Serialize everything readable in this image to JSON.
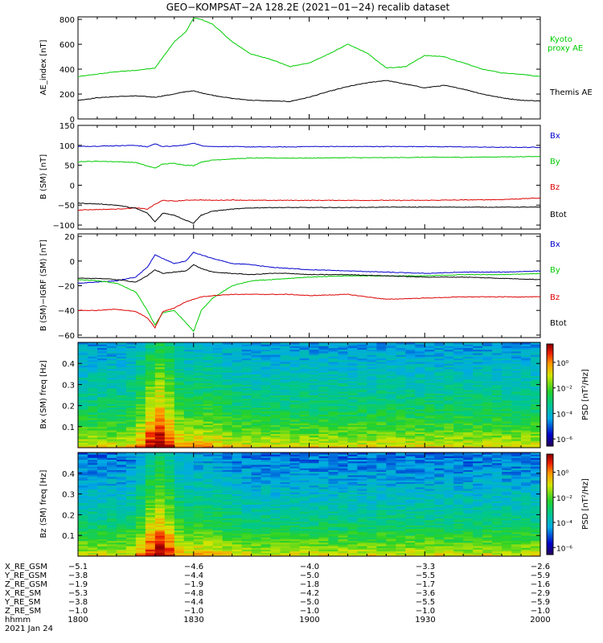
{
  "title": "GEO−KOMPSAT−2A 128.2E (2021−01−24) recalib dataset",
  "colors": {
    "black": "#000000",
    "blue": "#0000cc",
    "green": "#00cc00",
    "red": "#dd0000"
  },
  "chart_data": [
    {
      "type": "line",
      "ylabel": "AE_index [nT]",
      "ylim": [
        0,
        820
      ],
      "yticks": [
        "0",
        "200",
        "400",
        "600",
        "800"
      ],
      "x": [
        "1800",
        "1805",
        "1810",
        "1815",
        "1820",
        "1825",
        "1828",
        "1830",
        "1832",
        "1835",
        "1840",
        "1845",
        "1850",
        "1855",
        "1900",
        "1905",
        "1910",
        "1915",
        "1920",
        "1925",
        "1930",
        "1935",
        "1940",
        "1945",
        "1950",
        "1955",
        "2000"
      ],
      "series": [
        {
          "name": "Kyoto proxy AE",
          "color": "green",
          "values": [
            340,
            360,
            380,
            390,
            410,
            620,
            700,
            810,
            800,
            760,
            620,
            520,
            480,
            420,
            450,
            520,
            600,
            530,
            410,
            420,
            510,
            500,
            450,
            400,
            370,
            360,
            340
          ]
        },
        {
          "name": "Themis AE",
          "color": "black",
          "values": [
            150,
            170,
            180,
            185,
            175,
            200,
            220,
            225,
            210,
            190,
            165,
            150,
            145,
            140,
            175,
            220,
            260,
            290,
            310,
            280,
            250,
            270,
            240,
            200,
            170,
            150,
            145
          ]
        }
      ]
    },
    {
      "type": "line",
      "ylabel": "B (SM) [nT]",
      "ylim": [
        -110,
        150
      ],
      "yticks": [
        "−100",
        "−50",
        "0",
        "50",
        "100",
        "150"
      ],
      "x": [
        "1800",
        "1805",
        "1810",
        "1815",
        "1818",
        "1820",
        "1822",
        "1825",
        "1828",
        "1830",
        "1832",
        "1835",
        "1840",
        "1845",
        "1850",
        "1855",
        "1900",
        "1910",
        "1920",
        "1930",
        "1940",
        "1950",
        "2000"
      ],
      "series": [
        {
          "name": "Bx",
          "color": "blue",
          "values": [
            97,
            98,
            99,
            100,
            96,
            104,
            97,
            98,
            101,
            106,
            99,
            97,
            97,
            96,
            96,
            96,
            97,
            97,
            97,
            97,
            96,
            95,
            95
          ]
        },
        {
          "name": "By",
          "color": "green",
          "values": [
            59,
            60,
            59,
            57,
            48,
            43,
            53,
            55,
            50,
            49,
            58,
            63,
            66,
            68,
            68,
            68,
            68,
            69,
            69,
            70,
            70,
            71,
            72
          ]
        },
        {
          "name": "Bz",
          "color": "red",
          "values": [
            -62,
            -61,
            -60,
            -57,
            -60,
            -48,
            -38,
            -40,
            -38,
            -37,
            -37,
            -38,
            -37,
            -38,
            -38,
            -38,
            -38,
            -38,
            -38,
            -38,
            -37,
            -36,
            -32
          ]
        },
        {
          "name": "Btot",
          "color": "black",
          "values": [
            -45,
            -47,
            -50,
            -58,
            -70,
            -92,
            -70,
            -75,
            -88,
            -95,
            -75,
            -65,
            -60,
            -57,
            -56,
            -56,
            -56,
            -56,
            -55,
            -55,
            -55,
            -55,
            -55
          ]
        }
      ]
    },
    {
      "type": "line",
      "ylabel": "B (SM)−IGRF (SM) [nT]",
      "ylim": [
        -62,
        22
      ],
      "yticks": [
        "−60",
        "−40",
        "−20",
        "0",
        "20"
      ],
      "x": [
        "1800",
        "1805",
        "1810",
        "1815",
        "1818",
        "1820",
        "1822",
        "1825",
        "1828",
        "1830",
        "1832",
        "1835",
        "1840",
        "1845",
        "1850",
        "1855",
        "1900",
        "1910",
        "1920",
        "1930",
        "1940",
        "1950",
        "2000"
      ],
      "series": [
        {
          "name": "Bx",
          "color": "blue",
          "values": [
            -18,
            -17,
            -16,
            -13,
            -5,
            5,
            2,
            -2,
            0,
            7,
            5,
            2,
            -2,
            -3,
            -5,
            -6,
            -7,
            -8,
            -9,
            -10,
            -9,
            -9,
            -8
          ]
        },
        {
          "name": "By",
          "color": "green",
          "values": [
            -15,
            -16,
            -18,
            -25,
            -40,
            -52,
            -42,
            -40,
            -50,
            -57,
            -40,
            -30,
            -20,
            -16,
            -15,
            -14,
            -13,
            -12,
            -12,
            -12,
            -11,
            -11,
            -10
          ]
        },
        {
          "name": "Bz",
          "color": "red",
          "values": [
            -40,
            -40,
            -39,
            -41,
            -46,
            -54,
            -41,
            -38,
            -33,
            -31,
            -29,
            -28,
            -27,
            -27,
            -27,
            -27,
            -28,
            -27,
            -31,
            -30,
            -29,
            -29,
            -29
          ]
        },
        {
          "name": "Btot",
          "color": "black",
          "values": [
            -14,
            -14,
            -15,
            -17,
            -12,
            -7,
            -10,
            -9,
            -8,
            -3,
            -6,
            -9,
            -10,
            -11,
            -10,
            -10,
            -11,
            -11,
            -12,
            -13,
            -13,
            -14,
            -15
          ]
        }
      ]
    },
    {
      "type": "heatmap",
      "ylabel": "Bx (SM) freq [Hz]",
      "ylim": [
        0,
        0.5
      ],
      "yticks": [
        "0.1",
        "0.2",
        "0.3",
        "0.4"
      ],
      "colorbar_label": "PSD [nT²/Hz]",
      "colorbar_ticks": [
        "10⁰",
        "10⁻²",
        "10⁻⁴",
        "10⁻⁶"
      ]
    },
    {
      "type": "heatmap",
      "ylabel": "Bz (SM) freq [Hz]",
      "ylim": [
        0,
        0.5
      ],
      "yticks": [
        "0.1",
        "0.2",
        "0.3",
        "0.4"
      ],
      "colorbar_label": "PSD [nT²/Hz]",
      "colorbar_ticks": [
        "10⁰",
        "10⁻²",
        "10⁻⁴",
        "10⁻⁶"
      ]
    }
  ],
  "orbit": {
    "labels": [
      "X_RE_GSM",
      "Y_RE_GSM",
      "Z_RE_GSM",
      "X_RE_SM",
      "Y_RE_SM",
      "Z_RE_SM",
      "hhmm",
      "2021 Jan 24"
    ],
    "columns": [
      {
        "vals": [
          "−5.1",
          "−3.8",
          "−1.9",
          "−5.3",
          "−3.8",
          "−1.0",
          "1800"
        ]
      },
      {
        "vals": [
          "−4.6",
          "−4.4",
          "−1.9",
          "−4.8",
          "−4.4",
          "−1.0",
          "1830"
        ]
      },
      {
        "vals": [
          "−4.0",
          "−5.0",
          "−1.8",
          "−4.2",
          "−5.0",
          "−1.0",
          "1900"
        ]
      },
      {
        "vals": [
          "−3.3",
          "−5.5",
          "−1.7",
          "−3.6",
          "−5.5",
          "−1.0",
          "1930"
        ]
      },
      {
        "vals": [
          "−2.6",
          "−5.9",
          "−1.6",
          "−2.9",
          "−5.9",
          "−1.0",
          "2000"
        ]
      }
    ]
  }
}
